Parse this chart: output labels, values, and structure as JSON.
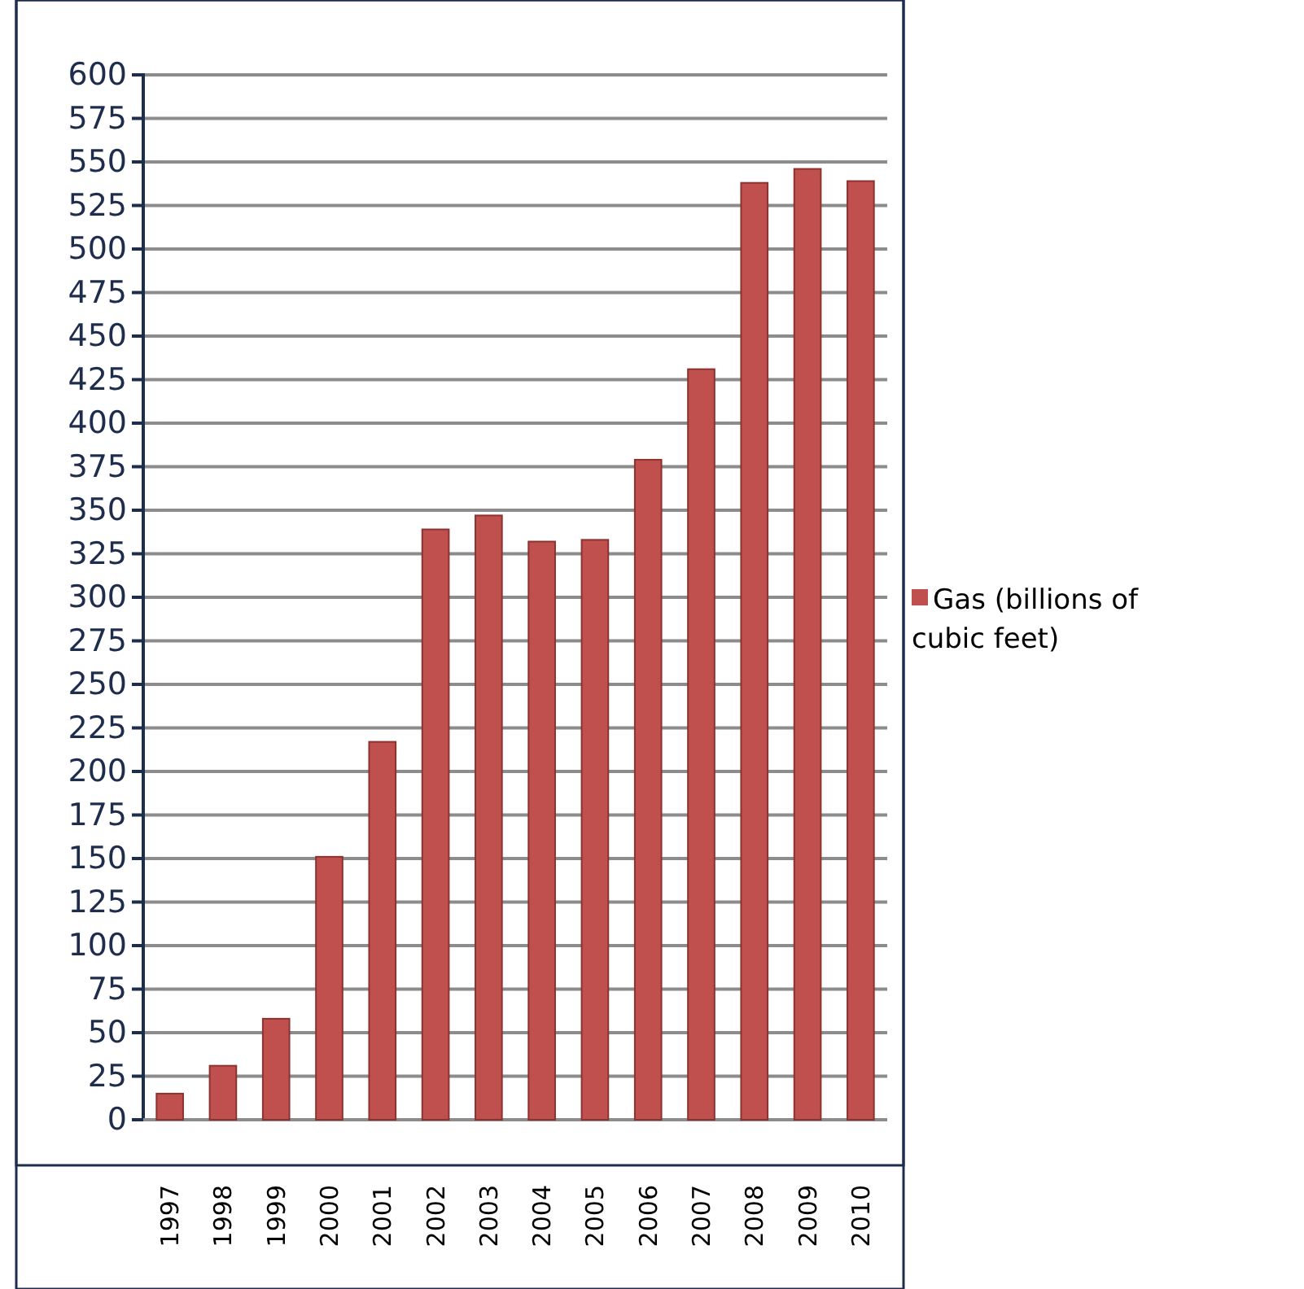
{
  "chart_data": {
    "type": "bar",
    "categories": [
      "1997",
      "1998",
      "1999",
      "2000",
      "2001",
      "2002",
      "2003",
      "2004",
      "2005",
      "2006",
      "2007",
      "2008",
      "2009",
      "2010"
    ],
    "series": [
      {
        "name": "Gas (billions of cubic feet)",
        "color": "#c0504d",
        "values": [
          15,
          31,
          58,
          151,
          217,
          339,
          347,
          332,
          333,
          379,
          431,
          538,
          546,
          539
        ]
      }
    ],
    "ylim": [
      0,
      600
    ],
    "yticks": [
      0,
      25,
      50,
      75,
      100,
      125,
      150,
      175,
      200,
      225,
      250,
      275,
      300,
      325,
      350,
      375,
      400,
      425,
      450,
      475,
      500,
      525,
      550,
      575,
      600
    ],
    "grid": "y",
    "legend": "right"
  }
}
